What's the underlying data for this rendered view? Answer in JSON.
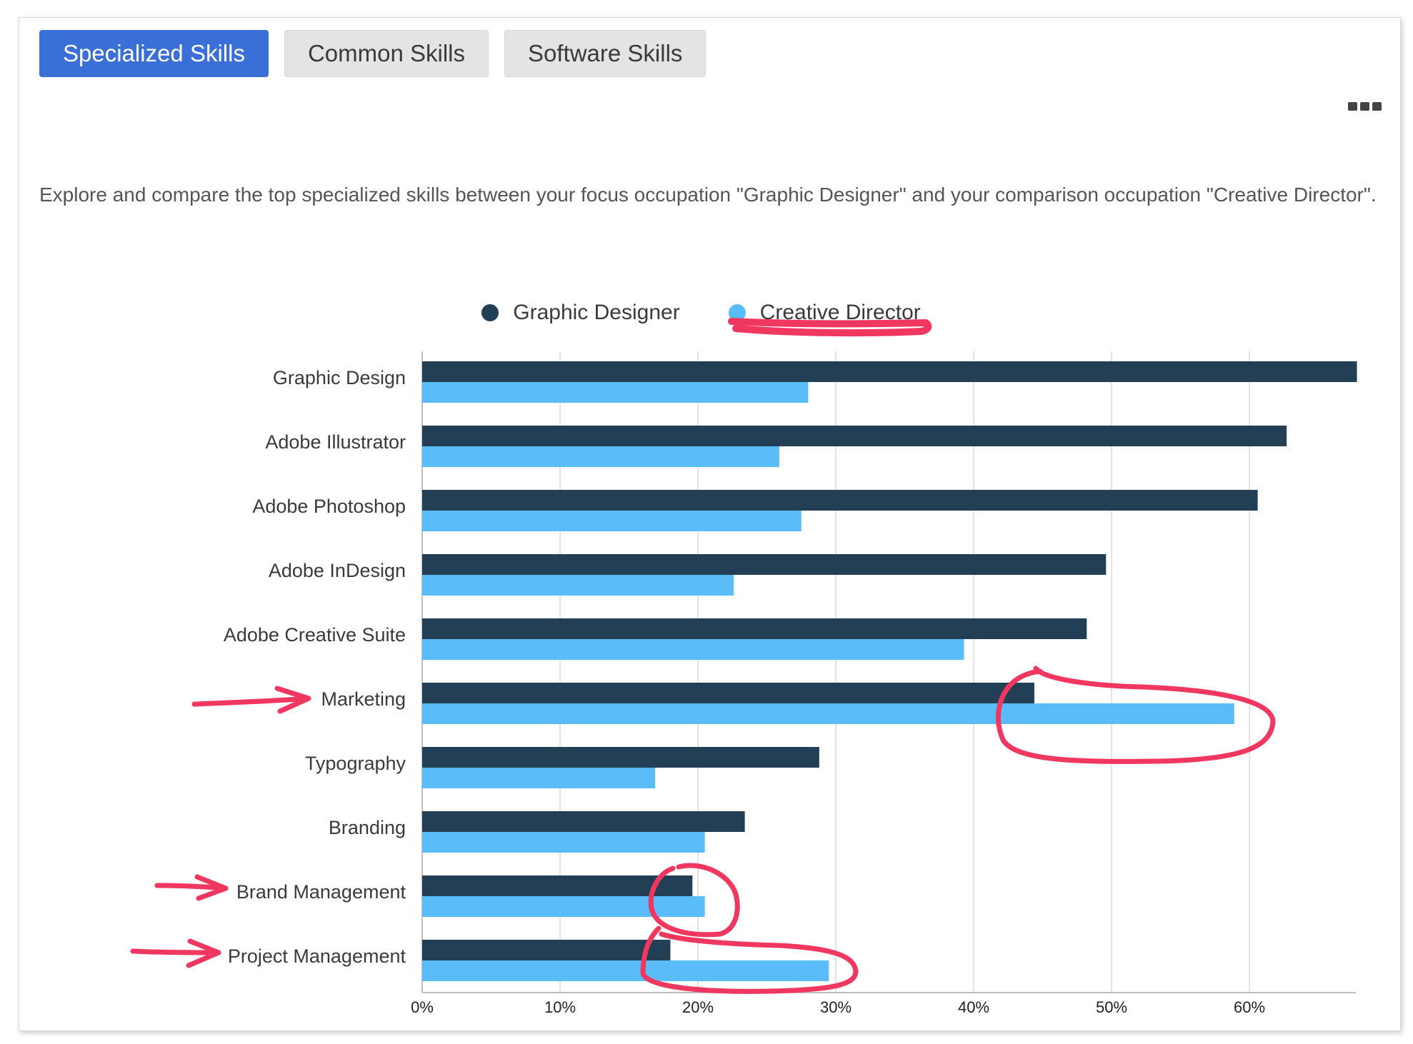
{
  "tabs": [
    {
      "label": "Specialized Skills",
      "active": true
    },
    {
      "label": "Common Skills",
      "active": false
    },
    {
      "label": "Software Skills",
      "active": false
    }
  ],
  "description": "Explore and compare the top specialized skills between your focus occupation \"Graphic Designer\" and your comparison occupation \"Creative Director\".",
  "colors": {
    "graphic_designer": "#223f55",
    "creative_director": "#5bbcfa",
    "annotation": "#f0375f",
    "tab_active": "#3a6fd8"
  },
  "chart_data": {
    "type": "bar",
    "orientation": "horizontal",
    "categories": [
      "Graphic Design",
      "Adobe Illustrator",
      "Adobe Photoshop",
      "Adobe InDesign",
      "Adobe Creative Suite",
      "Marketing",
      "Typography",
      "Branding",
      "Brand Management",
      "Project Management"
    ],
    "series": [
      {
        "name": "Graphic Designer",
        "values": [
          67.8,
          62.7,
          60.6,
          49.6,
          48.2,
          44.4,
          28.8,
          23.4,
          19.6,
          18.0
        ]
      },
      {
        "name": "Creative Director",
        "values": [
          28.0,
          25.9,
          27.5,
          22.6,
          39.3,
          58.9,
          16.9,
          20.5,
          20.5,
          29.5
        ]
      }
    ],
    "x_ticks": [
      "0%",
      "10%",
      "20%",
      "30%",
      "40%",
      "50%",
      "60%"
    ],
    "xlim": [
      0,
      68
    ],
    "grid": true,
    "legend_position": "top-center"
  },
  "annotations": {
    "underlined_legend": "Creative Director",
    "arrows": [
      "Marketing",
      "Brand Management",
      "Project Management"
    ],
    "circled": [
      "Marketing",
      "Brand Management",
      "Project Management"
    ]
  }
}
